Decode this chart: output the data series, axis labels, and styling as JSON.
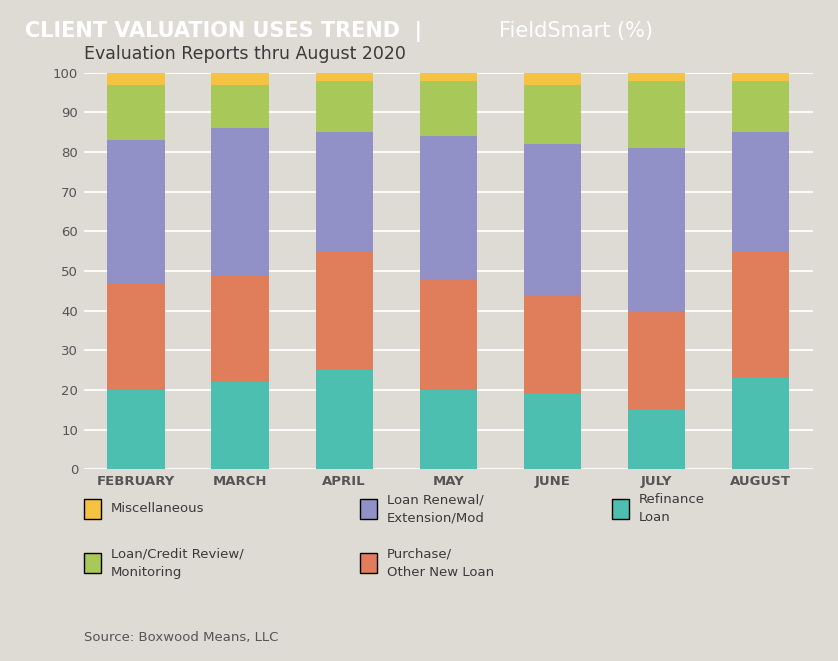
{
  "title_bold": "CLIENT VALUATION USES TREND  |  ",
  "title_normal": "FieldSmart (%)",
  "subtitle": "Evaluation Reports thru August 2020",
  "source": "Source: Boxwood Means, LLC",
  "categories": [
    "FEBRUARY",
    "MARCH",
    "APRIL",
    "MAY",
    "JUNE",
    "JULY",
    "AUGUST"
  ],
  "series_order": [
    "Refinance Loan",
    "Purchase/ Other New Loan",
    "Loan Renewal/ Extension/Mod",
    "Loan/Credit Review/ Monitoring",
    "Miscellaneous"
  ],
  "series": {
    "Refinance Loan": [
      20,
      22,
      25,
      20,
      19,
      15,
      23
    ],
    "Purchase/ Other New Loan": [
      27,
      27,
      30,
      28,
      25,
      25,
      32
    ],
    "Loan Renewal/ Extension/Mod": [
      36,
      37,
      30,
      36,
      38,
      41,
      30
    ],
    "Loan/Credit Review/ Monitoring": [
      14,
      11,
      13,
      14,
      15,
      17,
      13
    ],
    "Miscellaneous": [
      3,
      3,
      2,
      2,
      3,
      2,
      2
    ]
  },
  "colors": {
    "Refinance Loan": "#4dbfb0",
    "Purchase/ Other New Loan": "#e07d5a",
    "Loan Renewal/ Extension/Mod": "#9191c8",
    "Loan/Credit Review/ Monitoring": "#a8c85a",
    "Miscellaneous": "#f5c242"
  },
  "ylim": [
    0,
    100
  ],
  "yticks": [
    0,
    10,
    20,
    30,
    40,
    50,
    60,
    70,
    80,
    90,
    100
  ],
  "header_bg": "#5a5a5a",
  "body_bg": "#dedad4",
  "header_fg": "#ffffff",
  "text_dark": "#3a3a3a",
  "text_mid": "#555555",
  "legend": [
    {
      "label": "Miscellaneous",
      "color": "#f5c242",
      "col": 0,
      "row": 0
    },
    {
      "label": "Loan/Credit Review/\nMonitoring",
      "color": "#a8c85a",
      "col": 0,
      "row": 1
    },
    {
      "label": "Loan Renewal/\nExtension/Mod",
      "color": "#9191c8",
      "col": 1,
      "row": 0
    },
    {
      "label": "Purchase/\nOther New Loan",
      "color": "#e07d5a",
      "col": 1,
      "row": 1
    },
    {
      "label": "Refinance\nLoan",
      "color": "#4dbfb0",
      "col": 2,
      "row": 0
    }
  ]
}
